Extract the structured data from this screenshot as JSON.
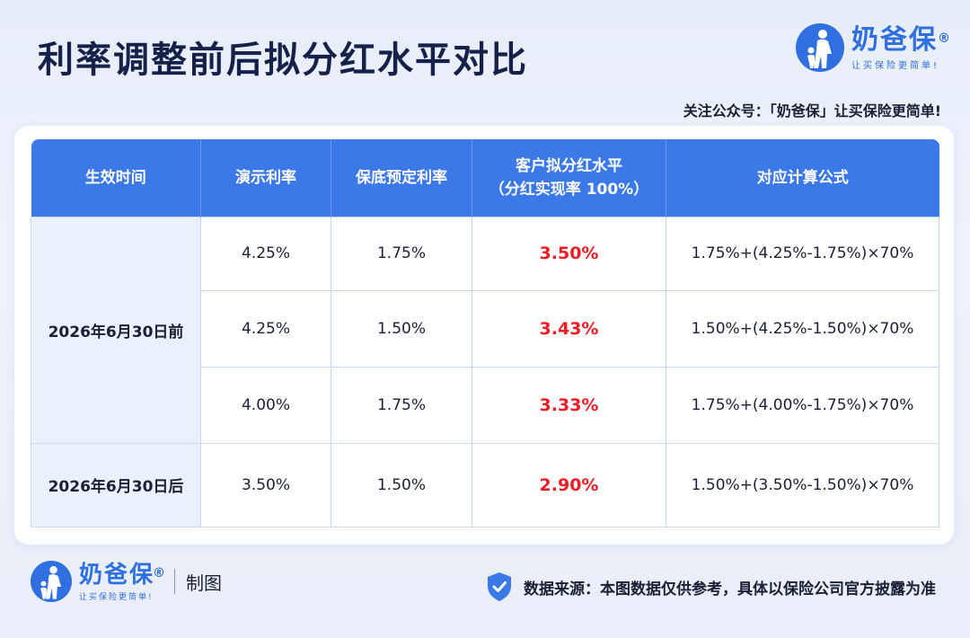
{
  "title": "利率调整前后拟分红水平对比",
  "brand": {
    "name": "奶爸保",
    "reg": "®",
    "slogan": "让买保险更简单!"
  },
  "follow_text": "关注公众号：「奶爸保」让买保险更简单!",
  "table": {
    "headers": [
      "生效时间",
      "演示利率",
      "保底预定利率",
      "客户拟分红水平",
      "对应计算公式"
    ],
    "header_sub": "（分红实现率 100%）",
    "rows": [
      {
        "period": "2026年6月30日前",
        "demo": "4.25%",
        "base": "1.75%",
        "dividend": "3.50%",
        "formula": "1.75%+(4.25%-1.75%)×70%"
      },
      {
        "demo": "4.25%",
        "base": "1.50%",
        "dividend": "3.43%",
        "formula": "1.50%+(4.25%-1.50%)×70%"
      },
      {
        "demo": "4.00%",
        "base": "1.75%",
        "dividend": "3.33%",
        "formula": "1.75%+(4.00%-1.75%)×70%"
      },
      {
        "period": "2026年6月30日后",
        "demo": "3.50%",
        "base": "1.50%",
        "dividend": "2.90%",
        "formula": "1.50%+(3.50%-1.50%)×70%"
      }
    ]
  },
  "footer": {
    "made": "制图",
    "source": "数据来源：本图数据仅供参考，具体以保险公司官方披露为准"
  },
  "colors": {
    "accent": "#3b78e8",
    "brand": "#2f6fe0",
    "highlight": "#ee1c25"
  },
  "icons": {
    "logo": "parent-child-logo-icon",
    "shield": "shield-check-icon"
  }
}
